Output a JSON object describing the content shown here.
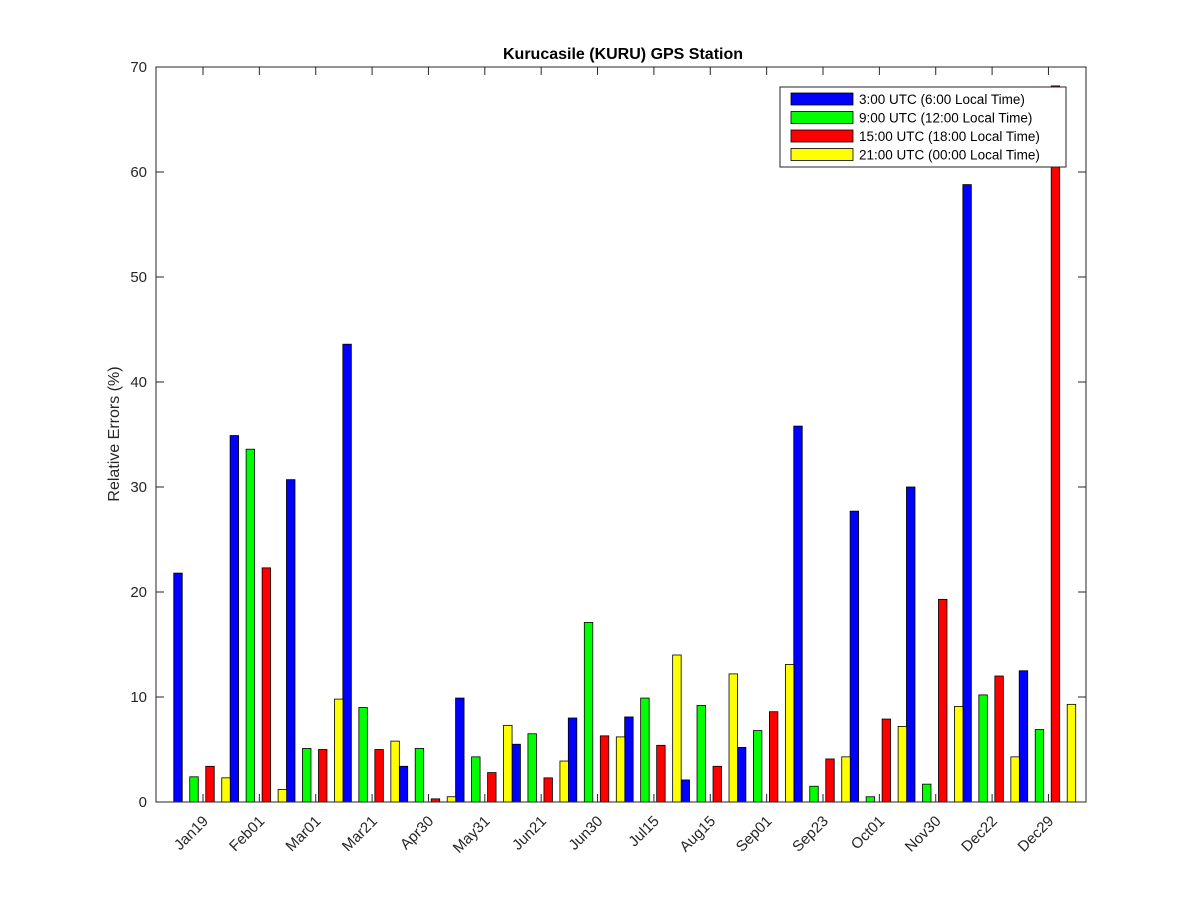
{
  "chart_data": {
    "type": "bar",
    "title": "Kurucasile (KURU) GPS Station",
    "xlabel": "",
    "ylabel": "Relative Errors (%)",
    "ylim": [
      0,
      70
    ],
    "yticks": [
      0,
      10,
      20,
      30,
      40,
      50,
      60,
      70
    ],
    "grid": false,
    "legend_position": "top-right",
    "categories": [
      "Jan19",
      "Feb01",
      "Mar01",
      "Mar21",
      "Apr30",
      "May31",
      "Jun21",
      "Jun30",
      "Jul15",
      "Aug15",
      "Sep01",
      "Sep23",
      "Oct01",
      "Nov30",
      "Dec22",
      "Dec29"
    ],
    "series": [
      {
        "name": "3:00 UTC (6:00 Local Time)",
        "color": "#0000ff",
        "values": [
          21.8,
          34.9,
          30.7,
          43.6,
          3.4,
          9.9,
          5.5,
          8.0,
          8.1,
          2.1,
          5.2,
          35.8,
          27.7,
          30.0,
          58.8,
          12.5
        ]
      },
      {
        "name": "9:00 UTC (12:00 Local Time)",
        "color": "#00ff00",
        "values": [
          2.4,
          33.6,
          5.1,
          9.0,
          5.1,
          4.3,
          6.5,
          17.1,
          9.9,
          9.2,
          6.8,
          1.5,
          0.5,
          1.7,
          10.2,
          6.9
        ]
      },
      {
        "name": "15:00 UTC (18:00 Local Time)",
        "color": "#ff0000",
        "values": [
          3.4,
          22.3,
          5.0,
          5.0,
          0.3,
          2.8,
          2.3,
          6.3,
          5.4,
          3.4,
          8.6,
          4.1,
          7.9,
          19.3,
          12.0,
          68.2
        ]
      },
      {
        "name": "21:00 UTC (00:00 Local Time)",
        "color": "#ffff00",
        "values": [
          2.3,
          1.2,
          9.8,
          5.8,
          0.5,
          7.3,
          3.9,
          6.2,
          14.0,
          12.2,
          13.1,
          4.3,
          7.2,
          9.1,
          4.3,
          9.3
        ]
      }
    ]
  }
}
